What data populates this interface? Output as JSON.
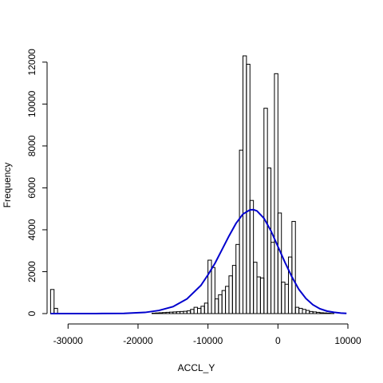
{
  "chart_data": {
    "type": "bar",
    "title": "",
    "xlabel": "ACCL_Y",
    "ylabel": "Frequency",
    "xlim": [
      -33000,
      10000
    ],
    "ylim": [
      0,
      12300
    ],
    "x_ticks": [
      -30000,
      -20000,
      -10000,
      0,
      10000
    ],
    "x_tick_labels": [
      "-30000",
      "-20000",
      "-10000",
      "0",
      "10000"
    ],
    "y_ticks": [
      0,
      2000,
      4000,
      6000,
      8000,
      10000,
      12000
    ],
    "y_tick_labels": [
      "0",
      "2000",
      "4000",
      "6000",
      "8000",
      "10000",
      "12000"
    ],
    "bin_width": 500,
    "bins": [
      {
        "start": -32500,
        "count": 1150
      },
      {
        "start": -32000,
        "count": 250
      },
      {
        "start": -18000,
        "count": 20
      },
      {
        "start": -17500,
        "count": 30
      },
      {
        "start": -17000,
        "count": 40
      },
      {
        "start": -16500,
        "count": 50
      },
      {
        "start": -16000,
        "count": 60
      },
      {
        "start": -15500,
        "count": 70
      },
      {
        "start": -15000,
        "count": 80
      },
      {
        "start": -14500,
        "count": 90
      },
      {
        "start": -14000,
        "count": 100
      },
      {
        "start": -13500,
        "count": 110
      },
      {
        "start": -13000,
        "count": 130
      },
      {
        "start": -12500,
        "count": 200
      },
      {
        "start": -12000,
        "count": 300
      },
      {
        "start": -11500,
        "count": 250
      },
      {
        "start": -11000,
        "count": 350
      },
      {
        "start": -10500,
        "count": 500
      },
      {
        "start": -10000,
        "count": 2550
      },
      {
        "start": -9500,
        "count": 2200
      },
      {
        "start": -9000,
        "count": 700
      },
      {
        "start": -8500,
        "count": 900
      },
      {
        "start": -8000,
        "count": 1100
      },
      {
        "start": -7500,
        "count": 1300
      },
      {
        "start": -7000,
        "count": 1800
      },
      {
        "start": -6500,
        "count": 2300
      },
      {
        "start": -6000,
        "count": 3300
      },
      {
        "start": -5500,
        "count": 7800
      },
      {
        "start": -5000,
        "count": 12300
      },
      {
        "start": -4500,
        "count": 11900
      },
      {
        "start": -4000,
        "count": 5400
      },
      {
        "start": -3500,
        "count": 2450
      },
      {
        "start": -3000,
        "count": 1750
      },
      {
        "start": -2500,
        "count": 1700
      },
      {
        "start": -2000,
        "count": 9800
      },
      {
        "start": -1500,
        "count": 6950
      },
      {
        "start": -1000,
        "count": 3400
      },
      {
        "start": -500,
        "count": 11450
      },
      {
        "start": 0,
        "count": 4800
      },
      {
        "start": 500,
        "count": 1500
      },
      {
        "start": 1000,
        "count": 1400
      },
      {
        "start": 1500,
        "count": 2700
      },
      {
        "start": 2000,
        "count": 4400
      },
      {
        "start": 2500,
        "count": 300
      },
      {
        "start": 3000,
        "count": 250
      },
      {
        "start": 3500,
        "count": 200
      },
      {
        "start": 4000,
        "count": 150
      },
      {
        "start": 4500,
        "count": 100
      },
      {
        "start": 5000,
        "count": 80
      },
      {
        "start": 5500,
        "count": 60
      },
      {
        "start": 6000,
        "count": 40
      },
      {
        "start": 6500,
        "count": 30
      },
      {
        "start": 7000,
        "count": 20
      },
      {
        "start": 7500,
        "count": 10
      }
    ],
    "fit_curve": {
      "color": "#0000CD",
      "x": [
        -32500,
        -30000,
        -26000,
        -22000,
        -19000,
        -17000,
        -15000,
        -13000,
        -11000,
        -10000,
        -9000,
        -8000,
        -7000,
        -6000,
        -5000,
        -4000,
        -3500,
        -3000,
        -2000,
        -1000,
        0,
        1000,
        2000,
        3000,
        4000,
        5000,
        6000,
        7000,
        8000,
        9000,
        9800
      ],
      "y": [
        0,
        0,
        1,
        8,
        55,
        150,
        330,
        700,
        1350,
        1850,
        2400,
        3050,
        3700,
        4300,
        4750,
        4950,
        4960,
        4900,
        4550,
        3950,
        3200,
        2450,
        1750,
        1150,
        720,
        420,
        230,
        120,
        60,
        25,
        10
      ]
    }
  }
}
